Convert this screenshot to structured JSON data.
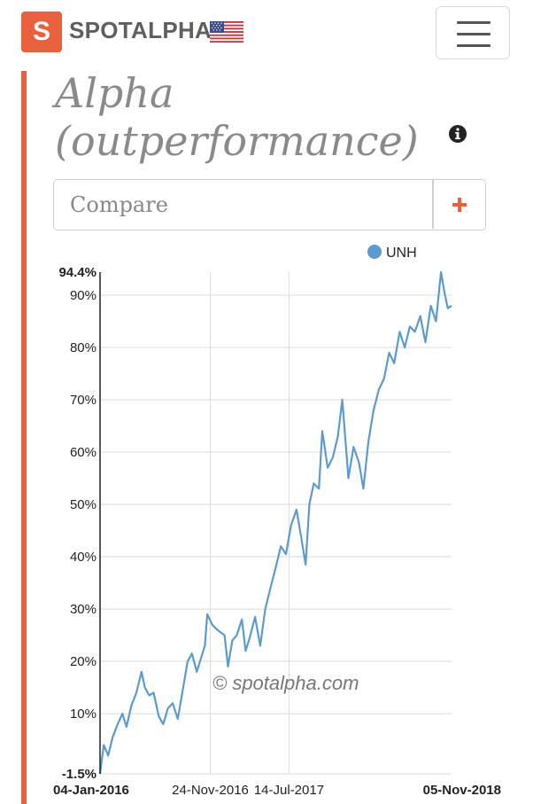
{
  "header": {
    "logo_letter": "S",
    "brand": "SPOTALPHA",
    "flag": "us-flag-icon",
    "menu": "hamburger-menu-icon"
  },
  "page": {
    "title_line1": "Alpha",
    "title_line2": "(outperformance)",
    "info": "info-icon"
  },
  "compare": {
    "placeholder": "Compare",
    "value": "",
    "add": "plus-icon"
  },
  "colors": {
    "accent": "#e8613c",
    "series": "#5b9bcf",
    "grid": "#e2e2e2"
  },
  "chart_data": {
    "type": "line",
    "watermark": "© spotalpha.com",
    "legend": {
      "position": "top-right",
      "entries": [
        "UNH"
      ]
    },
    "grid": {
      "x": true,
      "y": true
    },
    "x_range": [
      "2016-01-04",
      "2018-11-05"
    ],
    "x_ticks": [
      {
        "date": "2016-01-04",
        "label": "04-Jan-2016",
        "bold": true
      },
      {
        "date": "2016-11-24",
        "label": "24-Nov-2016",
        "bold": false
      },
      {
        "date": "2017-07-14",
        "label": "14-Jul-2017",
        "bold": false
      },
      {
        "date": "2018-11-05",
        "label": "05-Nov-2018",
        "bold": true
      }
    ],
    "y_range": [
      -1.5,
      94.4
    ],
    "y_ticks": [
      {
        "value": -1.5,
        "label": "-1.5%",
        "bold": true
      },
      {
        "value": 10,
        "label": "10%",
        "bold": false
      },
      {
        "value": 20,
        "label": "20%",
        "bold": false
      },
      {
        "value": 30,
        "label": "30%",
        "bold": false
      },
      {
        "value": 40,
        "label": "40%",
        "bold": false
      },
      {
        "value": 50,
        "label": "50%",
        "bold": false
      },
      {
        "value": 60,
        "label": "60%",
        "bold": false
      },
      {
        "value": 70,
        "label": "70%",
        "bold": false
      },
      {
        "value": 80,
        "label": "80%",
        "bold": false
      },
      {
        "value": 90,
        "label": "90%",
        "bold": false
      },
      {
        "value": 94.4,
        "label": "94.4%",
        "bold": true
      }
    ],
    "series": [
      {
        "name": "UNH",
        "points": [
          [
            "2016-01-04",
            -1.5
          ],
          [
            "2016-01-15",
            4.0
          ],
          [
            "2016-01-28",
            2.0
          ],
          [
            "2016-02-10",
            5.5
          ],
          [
            "2016-02-25",
            8.0
          ],
          [
            "2016-03-10",
            10.0
          ],
          [
            "2016-03-22",
            7.5
          ],
          [
            "2016-04-05",
            11.5
          ],
          [
            "2016-04-20",
            14.0
          ],
          [
            "2016-05-05",
            18.0
          ],
          [
            "2016-05-15",
            15.0
          ],
          [
            "2016-05-28",
            13.5
          ],
          [
            "2016-06-10",
            14.0
          ],
          [
            "2016-06-25",
            9.5
          ],
          [
            "2016-07-08",
            8.0
          ],
          [
            "2016-07-22",
            11.0
          ],
          [
            "2016-08-05",
            12.0
          ],
          [
            "2016-08-20",
            9.0
          ],
          [
            "2016-09-05",
            15.0
          ],
          [
            "2016-09-18",
            20.0
          ],
          [
            "2016-10-01",
            21.5
          ],
          [
            "2016-10-15",
            18.0
          ],
          [
            "2016-11-08",
            23.0
          ],
          [
            "2016-11-15",
            29.0
          ],
          [
            "2016-11-30",
            27.0
          ],
          [
            "2016-12-15",
            26.0
          ],
          [
            "2017-01-05",
            25.0
          ],
          [
            "2017-01-15",
            19.0
          ],
          [
            "2017-01-28",
            24.0
          ],
          [
            "2017-02-10",
            25.0
          ],
          [
            "2017-02-25",
            28.0
          ],
          [
            "2017-03-08",
            22.0
          ],
          [
            "2017-03-20",
            24.5
          ],
          [
            "2017-04-05",
            28.5
          ],
          [
            "2017-04-20",
            23.0
          ],
          [
            "2017-05-05",
            30.0
          ],
          [
            "2017-05-20",
            34.0
          ],
          [
            "2017-06-05",
            38.0
          ],
          [
            "2017-06-20",
            42.0
          ],
          [
            "2017-07-05",
            40.5
          ],
          [
            "2017-07-20",
            46.0
          ],
          [
            "2017-08-05",
            49.0
          ],
          [
            "2017-08-18",
            44.0
          ],
          [
            "2017-09-01",
            38.5
          ],
          [
            "2017-09-12",
            50.0
          ],
          [
            "2017-09-25",
            54.0
          ],
          [
            "2017-10-10",
            53.0
          ],
          [
            "2017-10-20",
            64.0
          ],
          [
            "2017-11-05",
            57.0
          ],
          [
            "2017-11-20",
            59.0
          ],
          [
            "2017-12-05",
            63.0
          ],
          [
            "2017-12-18",
            70.0
          ],
          [
            "2018-01-05",
            55.0
          ],
          [
            "2018-01-20",
            61.0
          ],
          [
            "2018-02-05",
            58.0
          ],
          [
            "2018-02-18",
            53.0
          ],
          [
            "2018-03-05",
            62.0
          ],
          [
            "2018-03-20",
            68.0
          ],
          [
            "2018-04-05",
            72.0
          ],
          [
            "2018-04-20",
            74.0
          ],
          [
            "2018-05-05",
            79.0
          ],
          [
            "2018-05-20",
            77.0
          ],
          [
            "2018-06-05",
            83.0
          ],
          [
            "2018-06-20",
            80.0
          ],
          [
            "2018-07-05",
            84.0
          ],
          [
            "2018-07-20",
            83.0
          ],
          [
            "2018-08-05",
            86.0
          ],
          [
            "2018-08-20",
            81.0
          ],
          [
            "2018-09-05",
            88.0
          ],
          [
            "2018-09-20",
            85.0
          ],
          [
            "2018-10-05",
            94.4
          ],
          [
            "2018-10-15",
            90.5
          ],
          [
            "2018-10-25",
            87.5
          ],
          [
            "2018-11-05",
            88.0
          ]
        ]
      }
    ]
  }
}
